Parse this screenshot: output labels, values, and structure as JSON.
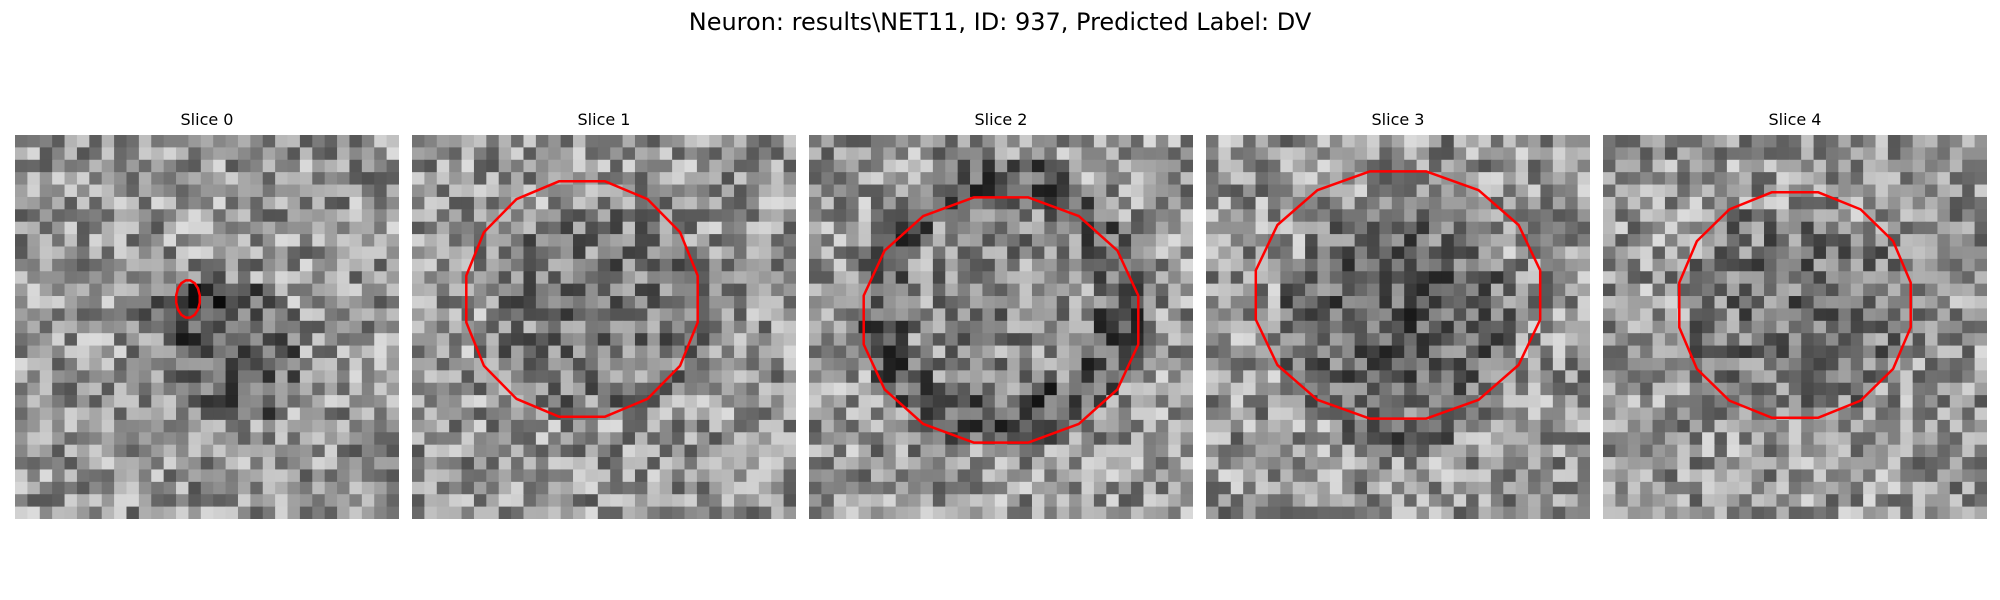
{
  "figure": {
    "title": "Neuron: results\\NET11, ID: 937, Predicted Label: DV"
  },
  "panels": [
    {
      "title": "Slice 0",
      "contour": "small",
      "contour_color": "#ff0000"
    },
    {
      "title": "Slice 1",
      "contour": "octagon",
      "contour_color": "#ff0000"
    },
    {
      "title": "Slice 2",
      "contour": "octagon",
      "contour_color": "#ff0000"
    },
    {
      "title": "Slice 3",
      "contour": "octagon",
      "contour_color": "#ff0000"
    },
    {
      "title": "Slice 4",
      "contour": "octagon",
      "contour_color": "#ff0000"
    }
  ],
  "colormap": "grayscale"
}
